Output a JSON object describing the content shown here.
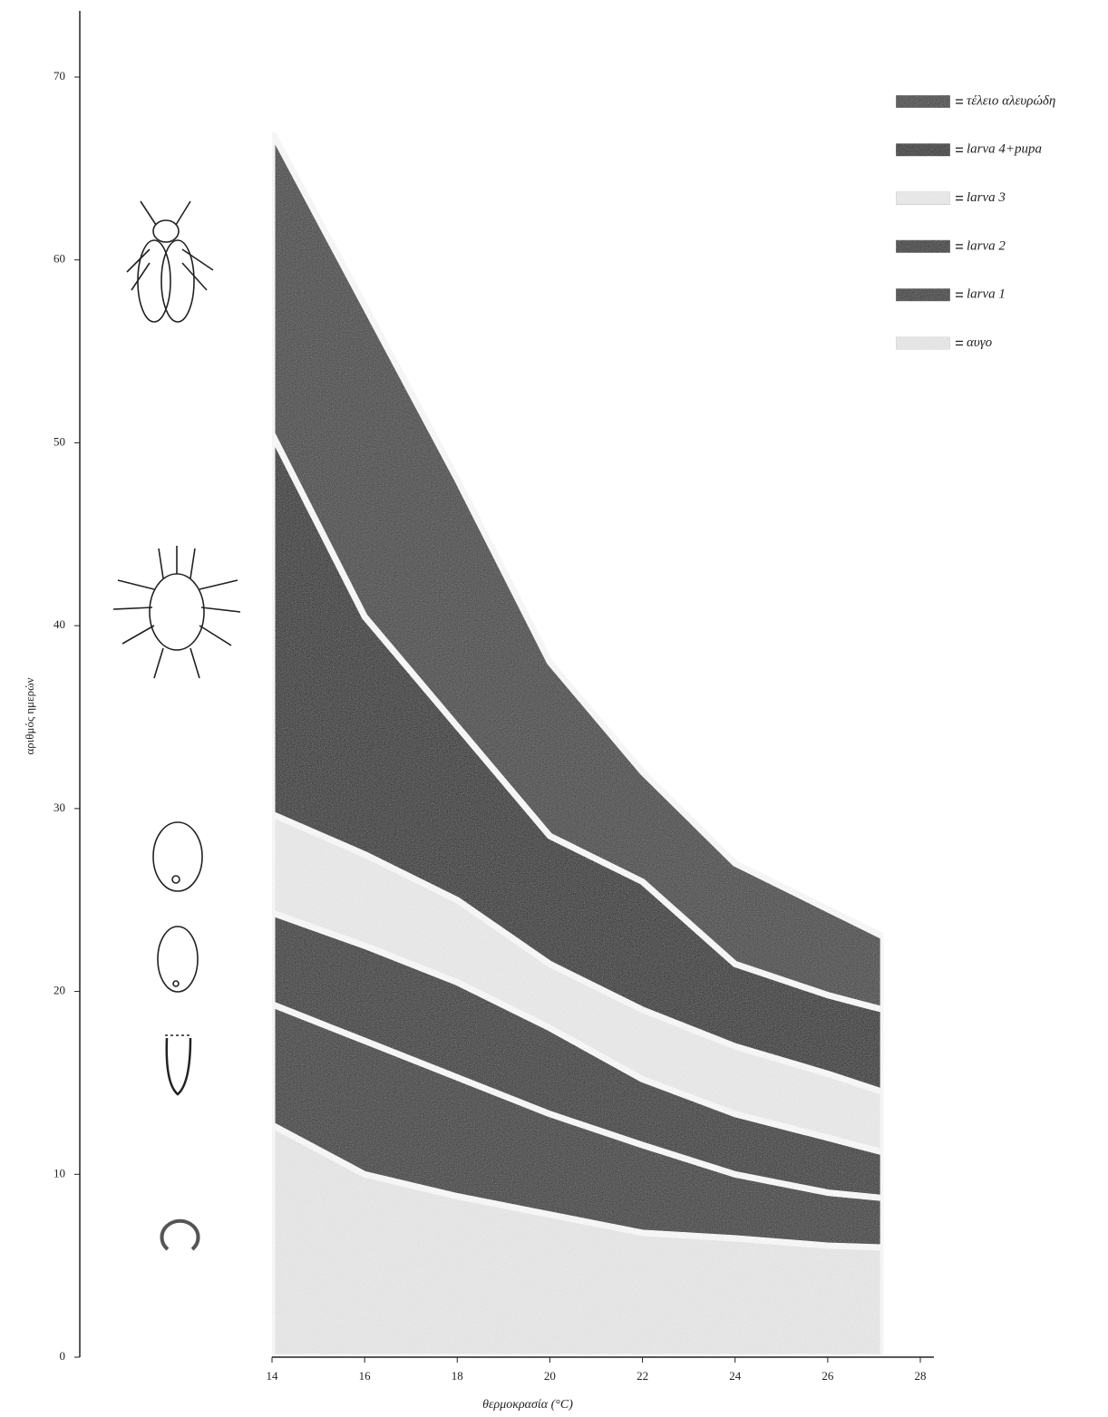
{
  "chart_data": {
    "type": "stacked-area",
    "x_label": "θερμοκρασία (°C)",
    "y_label": "αριθμός ημερών",
    "x": [
      14,
      16,
      18,
      20,
      22,
      24,
      26,
      27.2
    ],
    "series": [
      {
        "name": "αυγο",
        "color": "#ececec",
        "values": [
          12.7,
          10.0,
          8.8,
          7.8,
          6.8,
          6.5,
          6.1,
          6.0
        ]
      },
      {
        "name": "larva 1",
        "color": "#2e2e2e",
        "values": [
          6.6,
          7.3,
          6.5,
          5.5,
          4.8,
          3.5,
          2.9,
          2.7
        ]
      },
      {
        "name": "larva 2",
        "color": "#262626",
        "values": [
          5.0,
          5.2,
          5.2,
          4.7,
          3.6,
          3.3,
          3.0,
          2.5
        ]
      },
      {
        "name": "larva 3",
        "color": "#efefef",
        "values": [
          5.4,
          5.0,
          4.5,
          3.5,
          3.8,
          3.7,
          3.5,
          3.3
        ]
      },
      {
        "name": "larva 4+pupa",
        "color": "#1f1f1f",
        "values": [
          20.8,
          13.0,
          9.5,
          7.0,
          7.0,
          4.5,
          4.3,
          4.5
        ]
      },
      {
        "name": "τέλειο αλευρώδη",
        "color": "#3a3a3a",
        "values": [
          16.5,
          17.0,
          13.5,
          9.5,
          6.0,
          5.5,
          4.7,
          4.0
        ]
      }
    ],
    "xlim": [
      14,
      28
    ],
    "xticks": [
      14,
      16,
      18,
      20,
      22,
      24,
      26,
      28
    ],
    "ylim": [
      0,
      70
    ],
    "yticks": [
      0,
      10,
      20,
      30,
      40,
      50,
      60,
      70
    ],
    "legend": "top-right"
  }
}
